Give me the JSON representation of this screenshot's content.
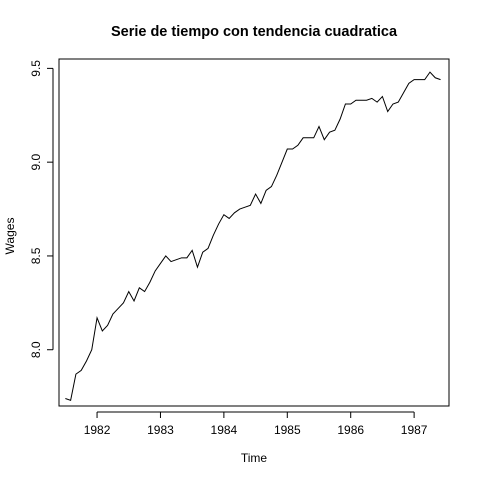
{
  "chart_data": {
    "type": "line",
    "title": "Serie de tiempo con tendencia cuadratica",
    "xlabel": "Time",
    "ylabel": "Wages",
    "xlim": [
      1981.4,
      1987.55
    ],
    "ylim": [
      7.7,
      9.55
    ],
    "x_ticks": [
      1982,
      1983,
      1984,
      1985,
      1986,
      1987
    ],
    "x_tick_labels": [
      "1982",
      "1983",
      "1984",
      "1985",
      "1986",
      "1987"
    ],
    "y_ticks": [
      8.0,
      8.5,
      9.0,
      9.5
    ],
    "y_tick_labels": [
      "8.0",
      "8.5",
      "9.0",
      "9.5"
    ],
    "grid": false,
    "legend": "none",
    "line_color": "#000000",
    "series": [
      {
        "x_start": 1981.5,
        "x_step": 0.08333333,
        "values": [
          7.74,
          7.73,
          7.87,
          7.89,
          7.94,
          8.0,
          8.17,
          8.1,
          8.13,
          8.19,
          8.22,
          8.25,
          8.31,
          8.26,
          8.33,
          8.31,
          8.36,
          8.42,
          8.46,
          8.5,
          8.47,
          8.48,
          8.49,
          8.49,
          8.53,
          8.44,
          8.52,
          8.54,
          8.61,
          8.67,
          8.72,
          8.7,
          8.73,
          8.75,
          8.76,
          8.77,
          8.83,
          8.78,
          8.85,
          8.87,
          8.93,
          9.0,
          9.07,
          9.07,
          9.09,
          9.13,
          9.13,
          9.13,
          9.19,
          9.12,
          9.16,
          9.17,
          9.23,
          9.31,
          9.31,
          9.33,
          9.33,
          9.33,
          9.34,
          9.32,
          9.35,
          9.27,
          9.31,
          9.32,
          9.37,
          9.42,
          9.44,
          9.44,
          9.44,
          9.48,
          9.45,
          9.44
        ]
      }
    ]
  }
}
